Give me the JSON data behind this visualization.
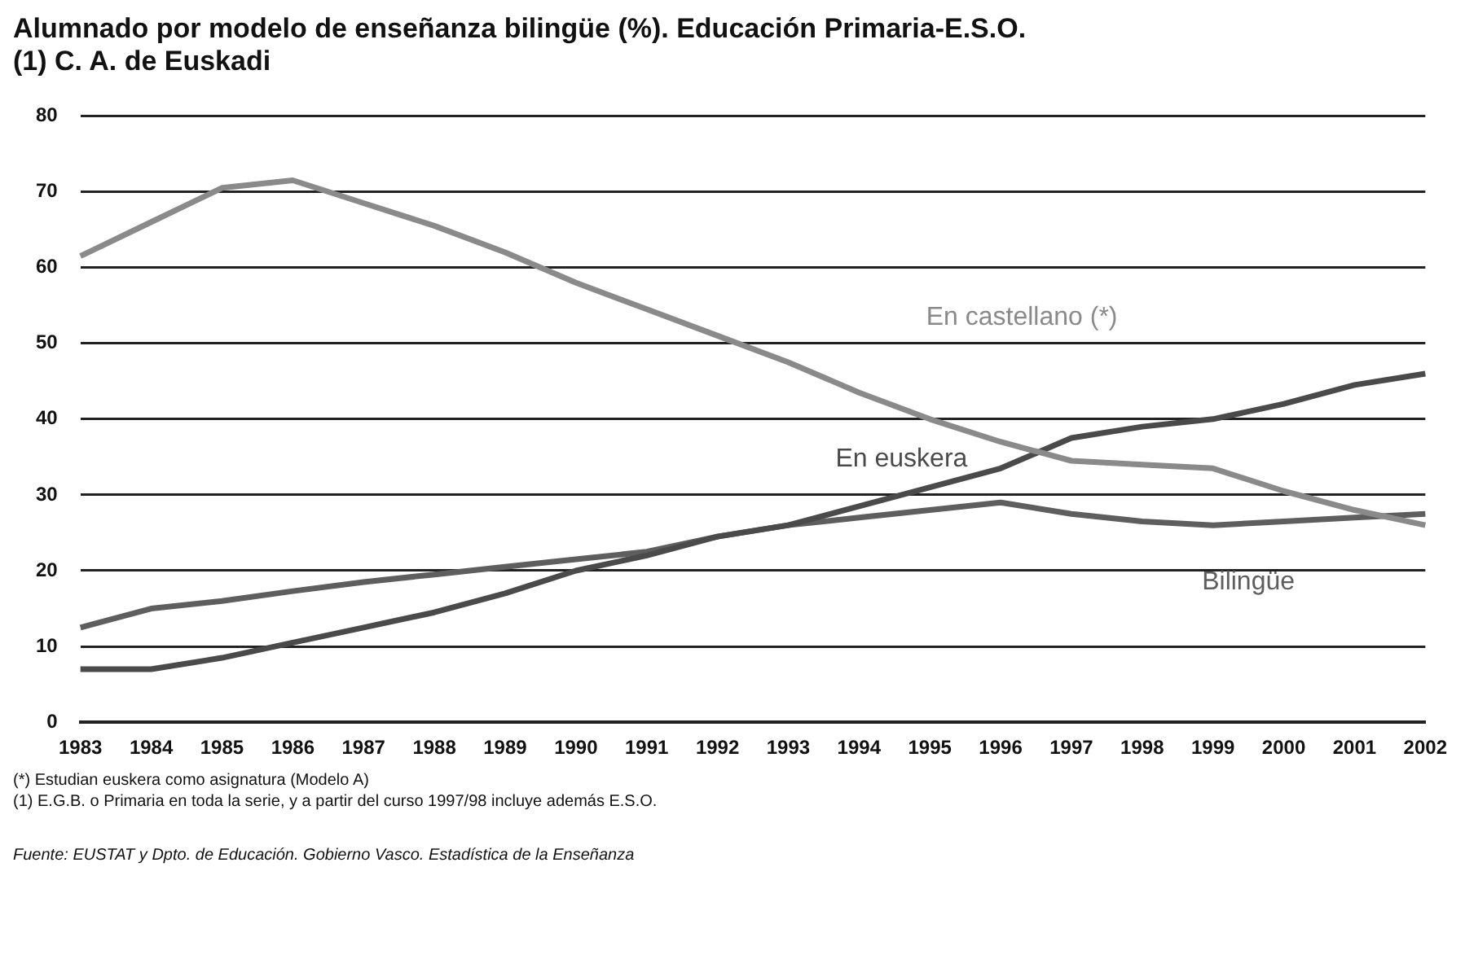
{
  "chart_data": {
    "type": "line",
    "title": "Alumnado por modelo de enseñanza bilingüe (%). Educación Primaria-E.S.O.",
    "subtitle": "(1) C. A. de Euskadi",
    "categories": [
      "1983",
      "1984",
      "1985",
      "1986",
      "1987",
      "1988",
      "1989",
      "1990",
      "1991",
      "1992",
      "1993",
      "1994",
      "1995",
      "1996",
      "1997",
      "1998",
      "1999",
      "2000",
      "2001",
      "2002"
    ],
    "series": [
      {
        "name": "En castellano (*)",
        "color": "#8a8a8a",
        "values": [
          61.5,
          66,
          70.5,
          71.5,
          68.5,
          65.5,
          62,
          58,
          54.5,
          51,
          47.5,
          43.5,
          40,
          37,
          34.5,
          34,
          33.5,
          30.5,
          28,
          26
        ]
      },
      {
        "name": "En euskera",
        "color": "#4a4a4a",
        "values": [
          7,
          7,
          8.5,
          10.5,
          12.5,
          14.5,
          17,
          20,
          22,
          24.5,
          26,
          28.5,
          31,
          33.5,
          37.5,
          39,
          40,
          42,
          44.5,
          46
        ]
      },
      {
        "name": "Bilingüe",
        "color": "#5e5e5e",
        "values": [
          12.5,
          15,
          16,
          17.3,
          18.5,
          19.5,
          20.5,
          21.5,
          22.5,
          24.5,
          26,
          27,
          28,
          29,
          27.5,
          26.5,
          26,
          26.5,
          27,
          27.5
        ]
      }
    ],
    "ylim": [
      0,
      80
    ],
    "yticks": [
      0,
      10,
      20,
      30,
      40,
      50,
      60,
      70,
      80
    ],
    "grid": "y",
    "legend": false,
    "marker": "none",
    "line_style": "solid",
    "annotations": [
      "(*) Estudian euskera como asignatura (Modelo A)",
      "(1) E.G.B. o Primaria en toda la serie, y a partir del curso 1997/98 incluye además E.S.O.",
      "Fuente: EUSTAT y Dpto. de Educación. Gobierno Vasco. Estadística de la Enseñanza"
    ]
  }
}
